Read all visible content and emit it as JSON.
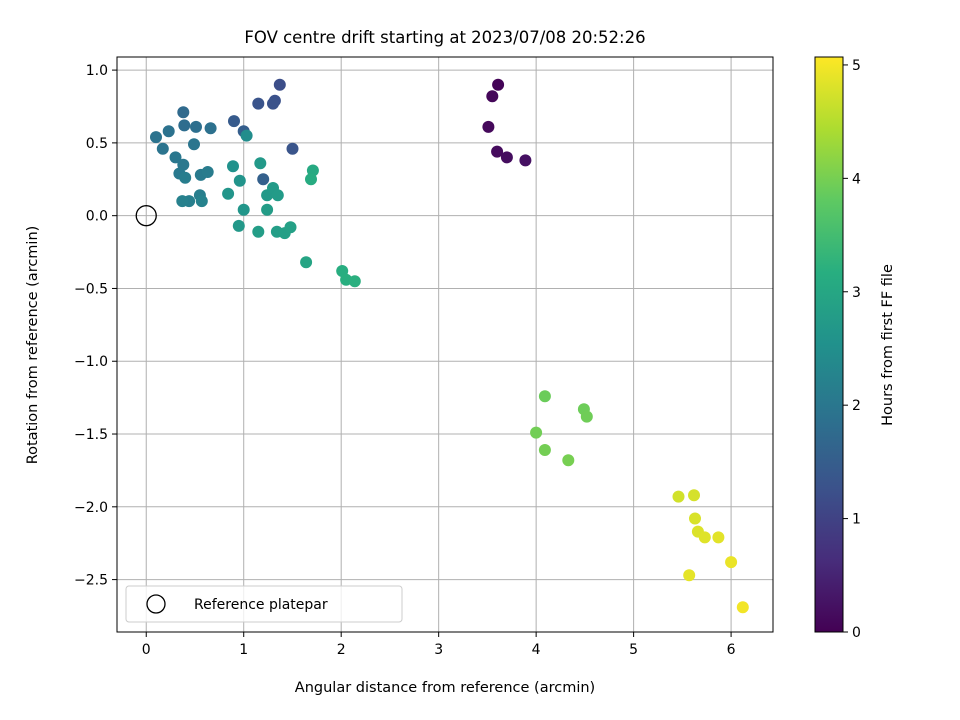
{
  "chart_data": {
    "type": "scatter",
    "title": "FOV centre drift starting at 2023/07/08 20:52:26",
    "xlabel": "Angular distance from reference (arcmin)",
    "ylabel": "Rotation from reference (arcmin)",
    "xlim": [
      -0.3,
      6.43
    ],
    "ylim": [
      -2.86,
      1.09
    ],
    "xticks": [
      0,
      1,
      2,
      3,
      4,
      5,
      6
    ],
    "yticks": [
      1.0,
      0.5,
      0.0,
      -0.5,
      -1.0,
      -1.5,
      -2.0,
      -2.5
    ],
    "xtick_labels": [
      "0",
      "1",
      "2",
      "3",
      "4",
      "5",
      "6"
    ],
    "ytick_labels": [
      "1.0",
      "0.5",
      "0.0",
      "−0.5",
      "−1.0",
      "−1.5",
      "−2.0",
      "−2.5"
    ],
    "grid": true,
    "legend": {
      "placement": "lower-left",
      "entries": [
        "Reference platepar"
      ]
    },
    "reference_point": {
      "x": 0,
      "y": 0,
      "label": "Reference platepar"
    },
    "colorbar": {
      "label": "Hours from first FF file",
      "colormap": "viridis",
      "range": [
        0,
        5.07
      ],
      "ticks": [
        0,
        1,
        2,
        3,
        4,
        5
      ],
      "tick_labels": [
        "0",
        "1",
        "2",
        "3",
        "4",
        "5"
      ]
    },
    "points": [
      {
        "x": 3.61,
        "y": 0.9,
        "h": 0.05
      },
      {
        "x": 3.55,
        "y": 0.82,
        "h": 0.08
      },
      {
        "x": 3.51,
        "y": 0.61,
        "h": 0.12
      },
      {
        "x": 3.6,
        "y": 0.44,
        "h": 0.15
      },
      {
        "x": 3.7,
        "y": 0.4,
        "h": 0.18
      },
      {
        "x": 3.89,
        "y": 0.38,
        "h": 0.22
      },
      {
        "x": 1.37,
        "y": 0.9,
        "h": 1.2
      },
      {
        "x": 1.32,
        "y": 0.79,
        "h": 1.25
      },
      {
        "x": 1.3,
        "y": 0.77,
        "h": 1.28
      },
      {
        "x": 1.15,
        "y": 0.77,
        "h": 1.3
      },
      {
        "x": 1.5,
        "y": 0.46,
        "h": 1.32
      },
      {
        "x": 0.9,
        "y": 0.65,
        "h": 1.45
      },
      {
        "x": 1.0,
        "y": 0.58,
        "h": 1.5
      },
      {
        "x": 1.2,
        "y": 0.25,
        "h": 1.55
      },
      {
        "x": 0.38,
        "y": 0.71,
        "h": 1.75
      },
      {
        "x": 0.39,
        "y": 0.62,
        "h": 1.8
      },
      {
        "x": 0.51,
        "y": 0.61,
        "h": 1.85
      },
      {
        "x": 0.66,
        "y": 0.6,
        "h": 1.88
      },
      {
        "x": 0.23,
        "y": 0.58,
        "h": 1.9
      },
      {
        "x": 0.1,
        "y": 0.54,
        "h": 1.92
      },
      {
        "x": 0.17,
        "y": 0.46,
        "h": 1.95
      },
      {
        "x": 0.49,
        "y": 0.49,
        "h": 1.97
      },
      {
        "x": 0.3,
        "y": 0.4,
        "h": 2.0
      },
      {
        "x": 0.38,
        "y": 0.35,
        "h": 2.02
      },
      {
        "x": 0.34,
        "y": 0.29,
        "h": 2.05
      },
      {
        "x": 0.56,
        "y": 0.28,
        "h": 2.07
      },
      {
        "x": 0.63,
        "y": 0.3,
        "h": 2.1
      },
      {
        "x": 0.4,
        "y": 0.26,
        "h": 2.12
      },
      {
        "x": 0.55,
        "y": 0.14,
        "h": 2.15
      },
      {
        "x": 0.44,
        "y": 0.1,
        "h": 2.17
      },
      {
        "x": 0.37,
        "y": 0.1,
        "h": 2.2
      },
      {
        "x": 0.57,
        "y": 0.1,
        "h": 2.22
      },
      {
        "x": 1.03,
        "y": 0.55,
        "h": 2.45
      },
      {
        "x": 0.89,
        "y": 0.34,
        "h": 2.55
      },
      {
        "x": 0.96,
        "y": 0.24,
        "h": 2.6
      },
      {
        "x": 0.84,
        "y": 0.15,
        "h": 2.62
      },
      {
        "x": 1.0,
        "y": 0.04,
        "h": 2.65
      },
      {
        "x": 0.95,
        "y": -0.07,
        "h": 2.68
      },
      {
        "x": 1.17,
        "y": 0.36,
        "h": 2.7
      },
      {
        "x": 1.24,
        "y": 0.14,
        "h": 2.72
      },
      {
        "x": 1.3,
        "y": 0.19,
        "h": 2.74
      },
      {
        "x": 1.35,
        "y": 0.14,
        "h": 2.76
      },
      {
        "x": 1.24,
        "y": 0.04,
        "h": 2.78
      },
      {
        "x": 1.15,
        "y": -0.11,
        "h": 2.8
      },
      {
        "x": 1.34,
        "y": -0.11,
        "h": 2.82
      },
      {
        "x": 1.42,
        "y": -0.12,
        "h": 2.85
      },
      {
        "x": 1.48,
        "y": -0.08,
        "h": 2.87
      },
      {
        "x": 1.64,
        "y": -0.32,
        "h": 2.95
      },
      {
        "x": 1.71,
        "y": 0.31,
        "h": 3.05
      },
      {
        "x": 1.69,
        "y": 0.25,
        "h": 3.1
      },
      {
        "x": 2.01,
        "y": -0.38,
        "h": 3.15
      },
      {
        "x": 2.05,
        "y": -0.44,
        "h": 3.18
      },
      {
        "x": 2.14,
        "y": -0.45,
        "h": 3.2
      },
      {
        "x": 4.09,
        "y": -1.24,
        "h": 3.9
      },
      {
        "x": 4.49,
        "y": -1.33,
        "h": 3.92
      },
      {
        "x": 4.52,
        "y": -1.38,
        "h": 3.94
      },
      {
        "x": 4.0,
        "y": -1.49,
        "h": 3.96
      },
      {
        "x": 4.09,
        "y": -1.61,
        "h": 3.98
      },
      {
        "x": 4.33,
        "y": -1.68,
        "h": 4.0
      },
      {
        "x": 5.46,
        "y": -1.93,
        "h": 4.72
      },
      {
        "x": 5.62,
        "y": -1.92,
        "h": 4.75
      },
      {
        "x": 5.63,
        "y": -2.08,
        "h": 4.78
      },
      {
        "x": 5.66,
        "y": -2.17,
        "h": 4.8
      },
      {
        "x": 5.73,
        "y": -2.21,
        "h": 4.83
      },
      {
        "x": 5.87,
        "y": -2.21,
        "h": 4.86
      },
      {
        "x": 5.57,
        "y": -2.47,
        "h": 4.88
      },
      {
        "x": 6.0,
        "y": -2.38,
        "h": 4.92
      },
      {
        "x": 6.12,
        "y": -2.69,
        "h": 4.98
      }
    ]
  }
}
